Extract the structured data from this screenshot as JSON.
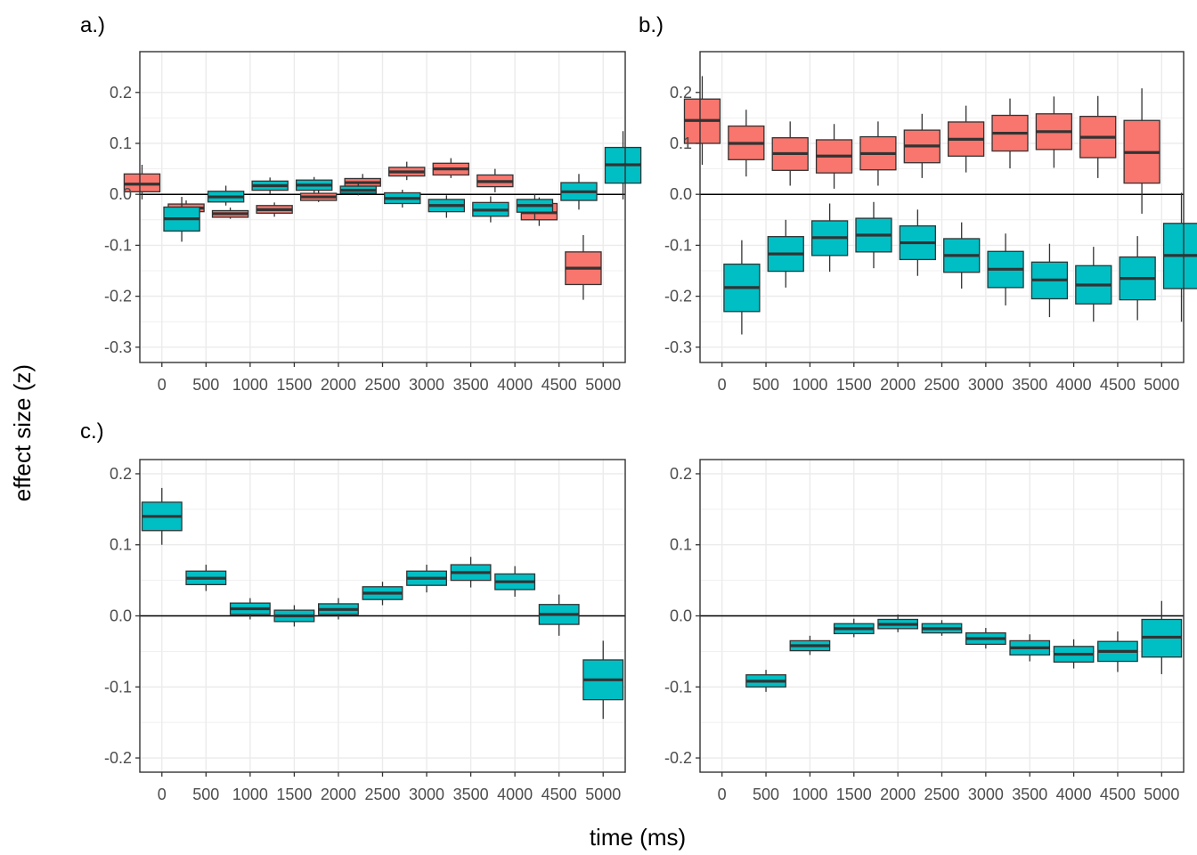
{
  "figure": {
    "xlabel": "time (ms)",
    "ylabel": "effect size (z)"
  },
  "colors": {
    "red_fill": "#F8766D",
    "teal_fill": "#00BFC4",
    "outline": "#333333",
    "grid": "#ebebeb"
  },
  "chart_data": [
    {
      "panel": "a.)",
      "type": "box",
      "categories": [
        "0",
        "500",
        "1000",
        "1500",
        "2000",
        "2500",
        "3000",
        "3500",
        "4000",
        "4500",
        "5000"
      ],
      "ylim": [
        -0.33,
        0.28
      ],
      "yticks": [
        0.2,
        0.1,
        0.0,
        -0.1,
        -0.2,
        -0.3
      ],
      "ytick_labels": [
        "0.2",
        "0.1",
        "0.0",
        "-0.1",
        "-0.2",
        "-0.3"
      ],
      "zero_line": true,
      "series": [
        {
          "name": "red",
          "color": "#F8766D",
          "offset": -1,
          "boxes": [
            {
              "whisker_low": -0.01,
              "q1": 0.005,
              "median": 0.02,
              "q3": 0.04,
              "whisker_high": 0.058
            },
            {
              "whisker_low": -0.042,
              "q1": -0.034,
              "median": -0.027,
              "q3": -0.019,
              "whisker_high": -0.012
            },
            {
              "whisker_low": -0.048,
              "q1": -0.045,
              "median": -0.038,
              "q3": -0.032,
              "whisker_high": -0.026
            },
            {
              "whisker_low": -0.044,
              "q1": -0.037,
              "median": -0.03,
              "q3": -0.022,
              "whisker_high": -0.016
            },
            {
              "whisker_low": -0.015,
              "q1": -0.012,
              "median": -0.005,
              "q3": 0.002,
              "whisker_high": 0.009
            },
            {
              "whisker_low": 0.01,
              "q1": 0.016,
              "median": 0.023,
              "q3": 0.031,
              "whisker_high": 0.04
            },
            {
              "whisker_low": 0.028,
              "q1": 0.036,
              "median": 0.044,
              "q3": 0.053,
              "whisker_high": 0.064
            },
            {
              "whisker_low": 0.032,
              "q1": 0.038,
              "median": 0.05,
              "q3": 0.061,
              "whisker_high": 0.071
            },
            {
              "whisker_low": 0.004,
              "q1": 0.015,
              "median": 0.025,
              "q3": 0.038,
              "whisker_high": 0.05
            },
            {
              "whisker_low": -0.062,
              "q1": -0.05,
              "median": -0.036,
              "q3": -0.018,
              "whisker_high": -0.006
            },
            {
              "whisker_low": -0.207,
              "q1": -0.177,
              "median": -0.145,
              "q3": -0.113,
              "whisker_high": -0.08
            }
          ]
        },
        {
          "name": "teal",
          "color": "#00BFC4",
          "offset": 1,
          "boxes": [
            {
              "whisker_low": -0.093,
              "q1": -0.072,
              "median": -0.048,
              "q3": -0.025,
              "whisker_high": -0.005
            },
            {
              "whisker_low": -0.022,
              "q1": -0.015,
              "median": -0.005,
              "q3": 0.006,
              "whisker_high": 0.017
            },
            {
              "whisker_low": 0.0,
              "q1": 0.008,
              "median": 0.017,
              "q3": 0.026,
              "whisker_high": 0.033
            },
            {
              "whisker_low": 0.003,
              "q1": 0.008,
              "median": 0.018,
              "q3": 0.028,
              "whisker_high": 0.034
            },
            {
              "whisker_low": -0.002,
              "q1": 0.002,
              "median": 0.008,
              "q3": 0.016,
              "whisker_high": 0.022
            },
            {
              "whisker_low": -0.026,
              "q1": -0.018,
              "median": -0.008,
              "q3": 0.003,
              "whisker_high": 0.009
            },
            {
              "whisker_low": -0.046,
              "q1": -0.034,
              "median": -0.022,
              "q3": -0.01,
              "whisker_high": -0.002
            },
            {
              "whisker_low": -0.055,
              "q1": -0.043,
              "median": -0.031,
              "q3": -0.016,
              "whisker_high": -0.004
            },
            {
              "whisker_low": -0.05,
              "q1": -0.035,
              "median": -0.022,
              "q3": -0.01,
              "whisker_high": 0.0
            },
            {
              "whisker_low": -0.03,
              "q1": -0.012,
              "median": 0.005,
              "q3": 0.023,
              "whisker_high": 0.04
            },
            {
              "whisker_low": -0.01,
              "q1": 0.022,
              "median": 0.058,
              "q3": 0.092,
              "whisker_high": 0.124
            }
          ]
        }
      ]
    },
    {
      "panel": "b.)",
      "type": "box",
      "categories": [
        "0",
        "500",
        "1000",
        "1500",
        "2000",
        "2500",
        "3000",
        "3500",
        "4000",
        "4500",
        "5000"
      ],
      "ylim": [
        -0.33,
        0.28
      ],
      "yticks": [
        0.2,
        0.1,
        0.0,
        -0.1,
        -0.2,
        -0.3
      ],
      "ytick_labels": [
        "0.2",
        "0.1",
        "0.0",
        "-0.1",
        "-0.2",
        "-0.3"
      ],
      "zero_line": true,
      "series": [
        {
          "name": "red",
          "color": "#F8766D",
          "offset": -1,
          "boxes": [
            {
              "whisker_low": 0.058,
              "q1": 0.1,
              "median": 0.145,
              "q3": 0.187,
              "whisker_high": 0.232
            },
            {
              "whisker_low": 0.035,
              "q1": 0.068,
              "median": 0.1,
              "q3": 0.134,
              "whisker_high": 0.166
            },
            {
              "whisker_low": 0.017,
              "q1": 0.047,
              "median": 0.08,
              "q3": 0.111,
              "whisker_high": 0.143
            },
            {
              "whisker_low": 0.011,
              "q1": 0.042,
              "median": 0.075,
              "q3": 0.107,
              "whisker_high": 0.138
            },
            {
              "whisker_low": 0.017,
              "q1": 0.048,
              "median": 0.08,
              "q3": 0.113,
              "whisker_high": 0.143
            },
            {
              "whisker_low": 0.032,
              "q1": 0.062,
              "median": 0.095,
              "q3": 0.126,
              "whisker_high": 0.158
            },
            {
              "whisker_low": 0.043,
              "q1": 0.075,
              "median": 0.108,
              "q3": 0.142,
              "whisker_high": 0.174
            },
            {
              "whisker_low": 0.051,
              "q1": 0.085,
              "median": 0.12,
              "q3": 0.155,
              "whisker_high": 0.188
            },
            {
              "whisker_low": 0.052,
              "q1": 0.088,
              "median": 0.123,
              "q3": 0.158,
              "whisker_high": 0.192
            },
            {
              "whisker_low": 0.032,
              "q1": 0.072,
              "median": 0.112,
              "q3": 0.153,
              "whisker_high": 0.193
            },
            {
              "whisker_low": -0.038,
              "q1": 0.022,
              "median": 0.082,
              "q3": 0.145,
              "whisker_high": 0.208
            }
          ]
        },
        {
          "name": "teal",
          "color": "#00BFC4",
          "offset": 1,
          "boxes": [
            {
              "whisker_low": -0.275,
              "q1": -0.23,
              "median": -0.183,
              "q3": -0.137,
              "whisker_high": -0.09
            },
            {
              "whisker_low": -0.183,
              "q1": -0.151,
              "median": -0.117,
              "q3": -0.083,
              "whisker_high": -0.05
            },
            {
              "whisker_low": -0.152,
              "q1": -0.12,
              "median": -0.085,
              "q3": -0.052,
              "whisker_high": -0.018
            },
            {
              "whisker_low": -0.145,
              "q1": -0.113,
              "median": -0.08,
              "q3": -0.047,
              "whisker_high": -0.015
            },
            {
              "whisker_low": -0.16,
              "q1": -0.128,
              "median": -0.095,
              "q3": -0.062,
              "whisker_high": -0.03
            },
            {
              "whisker_low": -0.185,
              "q1": -0.153,
              "median": -0.12,
              "q3": -0.087,
              "whisker_high": -0.055
            },
            {
              "whisker_low": -0.218,
              "q1": -0.183,
              "median": -0.147,
              "q3": -0.112,
              "whisker_high": -0.077
            },
            {
              "whisker_low": -0.241,
              "q1": -0.205,
              "median": -0.168,
              "q3": -0.133,
              "whisker_high": -0.097
            },
            {
              "whisker_low": -0.25,
              "q1": -0.215,
              "median": -0.178,
              "q3": -0.14,
              "whisker_high": -0.103
            },
            {
              "whisker_low": -0.247,
              "q1": -0.207,
              "median": -0.165,
              "q3": -0.123,
              "whisker_high": -0.082
            },
            {
              "whisker_low": -0.25,
              "q1": -0.185,
              "median": -0.12,
              "q3": -0.057,
              "whisker_high": 0.003
            }
          ]
        }
      ]
    },
    {
      "panel": "c.)",
      "type": "box",
      "categories": [
        "0",
        "500",
        "1000",
        "1500",
        "2000",
        "2500",
        "3000",
        "3500",
        "4000",
        "4500",
        "5000"
      ],
      "ylim": [
        -0.22,
        0.22
      ],
      "yticks": [
        0.2,
        0.1,
        0.0,
        -0.1,
        -0.2
      ],
      "ytick_labels": [
        "0.2",
        "0.1",
        "0.0",
        "-0.1",
        "-0.2"
      ],
      "zero_line": true,
      "series": [
        {
          "name": "teal",
          "color": "#00BFC4",
          "offset": 0,
          "boxes": [
            {
              "whisker_low": 0.1,
              "q1": 0.12,
              "median": 0.14,
              "q3": 0.16,
              "whisker_high": 0.18
            },
            {
              "whisker_low": 0.035,
              "q1": 0.044,
              "median": 0.053,
              "q3": 0.063,
              "whisker_high": 0.072
            },
            {
              "whisker_low": -0.005,
              "q1": 0.002,
              "median": 0.01,
              "q3": 0.018,
              "whisker_high": 0.025
            },
            {
              "whisker_low": -0.015,
              "q1": -0.008,
              "median": 0.0,
              "q3": 0.008,
              "whisker_high": 0.015
            },
            {
              "whisker_low": -0.005,
              "q1": 0.002,
              "median": 0.009,
              "q3": 0.017,
              "whisker_high": 0.025
            },
            {
              "whisker_low": 0.015,
              "q1": 0.023,
              "median": 0.032,
              "q3": 0.041,
              "whisker_high": 0.048
            },
            {
              "whisker_low": 0.033,
              "q1": 0.043,
              "median": 0.053,
              "q3": 0.063,
              "whisker_high": 0.072
            },
            {
              "whisker_low": 0.04,
              "q1": 0.05,
              "median": 0.061,
              "q3": 0.072,
              "whisker_high": 0.083
            },
            {
              "whisker_low": 0.027,
              "q1": 0.037,
              "median": 0.048,
              "q3": 0.059,
              "whisker_high": 0.07
            },
            {
              "whisker_low": -0.028,
              "q1": -0.012,
              "median": 0.002,
              "q3": 0.016,
              "whisker_high": 0.03
            },
            {
              "whisker_low": -0.145,
              "q1": -0.118,
              "median": -0.09,
              "q3": -0.062,
              "whisker_high": -0.035
            }
          ]
        }
      ]
    },
    {
      "panel": "",
      "type": "box",
      "categories": [
        "0",
        "500",
        "1000",
        "1500",
        "2000",
        "2500",
        "3000",
        "3500",
        "4000",
        "4500",
        "5000"
      ],
      "ylim": [
        -0.22,
        0.22
      ],
      "yticks": [
        0.2,
        0.1,
        0.0,
        -0.1,
        -0.2
      ],
      "ytick_labels": [
        "0.2",
        "0.1",
        "0.0",
        "-0.1",
        "-0.2"
      ],
      "zero_line": true,
      "series": [
        {
          "name": "teal",
          "color": "#00BFC4",
          "offset": 0,
          "boxes": [
            null,
            {
              "whisker_low": -0.107,
              "q1": -0.1,
              "median": -0.092,
              "q3": -0.083,
              "whisker_high": -0.076
            },
            {
              "whisker_low": -0.055,
              "q1": -0.049,
              "median": -0.042,
              "q3": -0.035,
              "whisker_high": -0.028
            },
            {
              "whisker_low": -0.03,
              "q1": -0.025,
              "median": -0.018,
              "q3": -0.011,
              "whisker_high": -0.004
            },
            {
              "whisker_low": -0.023,
              "q1": -0.018,
              "median": -0.012,
              "q3": -0.005,
              "whisker_high": 0.002
            },
            {
              "whisker_low": -0.028,
              "q1": -0.024,
              "median": -0.018,
              "q3": -0.011,
              "whisker_high": -0.006
            },
            {
              "whisker_low": -0.046,
              "q1": -0.04,
              "median": -0.032,
              "q3": -0.024,
              "whisker_high": -0.017
            },
            {
              "whisker_low": -0.064,
              "q1": -0.055,
              "median": -0.045,
              "q3": -0.035,
              "whisker_high": -0.026
            },
            {
              "whisker_low": -0.074,
              "q1": -0.065,
              "median": -0.054,
              "q3": -0.043,
              "whisker_high": -0.033
            },
            {
              "whisker_low": -0.079,
              "q1": -0.064,
              "median": -0.05,
              "q3": -0.036,
              "whisker_high": -0.022
            },
            {
              "whisker_low": -0.082,
              "q1": -0.058,
              "median": -0.03,
              "q3": -0.005,
              "whisker_high": 0.021
            }
          ]
        }
      ]
    }
  ]
}
